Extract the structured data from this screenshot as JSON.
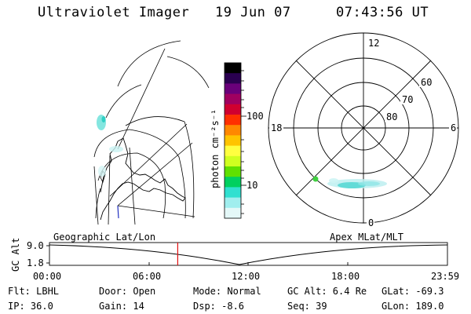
{
  "header": {
    "title": "Ultraviolet Imager",
    "date": "19 Jun 07",
    "time": "07:43:56 UT"
  },
  "geo_map": {
    "label": "Geographic Lat/Lon"
  },
  "colorbar": {
    "unit": "photon cm⁻²s⁻¹",
    "ticks": [
      "100",
      "10"
    ],
    "colors": [
      "#000000",
      "#2a0050",
      "#6a007a",
      "#a00060",
      "#d00030",
      "#ff3000",
      "#ff8800",
      "#ffc400",
      "#ffff40",
      "#d0ff20",
      "#60e000",
      "#00d060",
      "#30e0d0",
      "#a0eeee",
      "#e4f8f8"
    ]
  },
  "polar": {
    "label": "Apex MLat/MLT",
    "mlt_labels": {
      "top": "12",
      "left": "18",
      "right": "6",
      "bottom": "0"
    },
    "lat_labels": [
      "60",
      "70",
      "80"
    ]
  },
  "gc_alt": {
    "label": "GC Alt",
    "y_ticks": [
      "9.0",
      "1.8"
    ],
    "x_ticks": [
      "00:00",
      "06:00",
      "12:00",
      "18:00",
      "23:59"
    ],
    "current_time_fraction": 0.3222
  },
  "status": {
    "flt": "Flt: LBHL",
    "ip": "IP: 36.0",
    "door": "Door: Open",
    "gain": "Gain: 14",
    "mode": "Mode: Normal",
    "dsp": "Dsp:   -8.6",
    "gc_alt": "GC Alt: 6.4 Re",
    "seq": "Seq: 39",
    "glat": "GLat: -69.3",
    "glon": "GLon: 189.0"
  }
}
